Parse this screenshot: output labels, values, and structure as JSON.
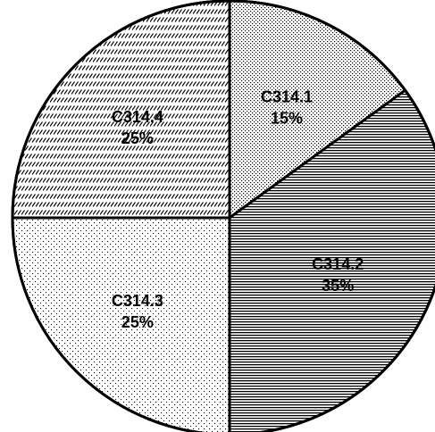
{
  "chart_data": {
    "type": "pie",
    "slices": [
      {
        "label": "C314.1",
        "value": 15,
        "value_label": "15%",
        "pattern": "dots-fine"
      },
      {
        "label": "C314.2",
        "value": 35,
        "value_label": "35%",
        "pattern": "horizontal-lines"
      },
      {
        "label": "C314.3",
        "value": 25,
        "value_label": "25%",
        "pattern": "dots-sparse"
      },
      {
        "label": "C314.4",
        "value": 25,
        "value_label": "25%",
        "pattern": "diagonal-dashes"
      }
    ],
    "start": "12 o'clock",
    "direction": "clockwise",
    "legend": "none",
    "colors": {
      "ink": "#000000",
      "background": "#ffffff"
    }
  }
}
